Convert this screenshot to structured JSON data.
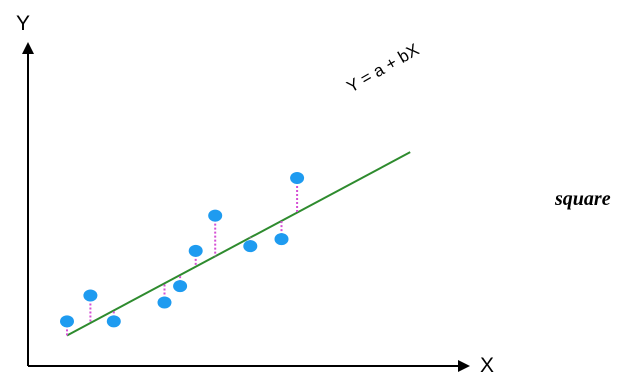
{
  "chart_data": {
    "type": "scatter",
    "xlabel": "X",
    "ylabel": "Y",
    "annotations": {
      "regression_line_label": "Y = a + bX",
      "side_text": "square"
    },
    "points": [
      {
        "x": 1.0,
        "y": 1.9
      },
      {
        "x": 1.6,
        "y": 3.0
      },
      {
        "x": 2.2,
        "y": 1.9
      },
      {
        "x": 3.5,
        "y": 2.7
      },
      {
        "x": 3.9,
        "y": 3.4
      },
      {
        "x": 4.3,
        "y": 4.9
      },
      {
        "x": 4.8,
        "y": 6.4
      },
      {
        "x": 5.7,
        "y": 5.1
      },
      {
        "x": 6.5,
        "y": 5.4
      },
      {
        "x": 6.9,
        "y": 8.0
      }
    ],
    "regression_line": {
      "x": [
        1.0,
        9.8
      ],
      "y": [
        1.3,
        9.1
      ]
    },
    "grid": false,
    "colors": {
      "points": "#1e9bf0",
      "regression_line": "#2e8b2e",
      "residuals": "#d54fd5",
      "axes": "#000000"
    }
  }
}
